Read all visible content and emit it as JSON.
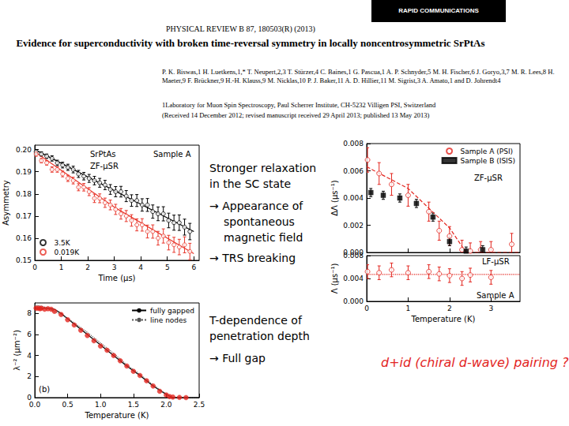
{
  "header": {
    "banner": "RAPID COMMUNICATIONS",
    "journal": "PHYSICAL REVIEW B 87, 180503(R) (2013)",
    "title": "Evidence for superconductivity with broken time-reversal symmetry in locally noncentrosymmetric SrPtAs",
    "authors": "P. K. Biswas,1 H. Luetkens,1,* T. Neupert,2,3 T. Stürzer,4 C. Baines,1 G. Pascua,1 A. P. Schnyder,5 M. H. Fischer,6 J. Goryo,3,7 M. R. Lees,8 H. Maeter,9 F. Brückner,9 H.-H. Klauss,9 M. Nicklas,10 P. J. Baker,11 A. D. Hillier,11 M. Sigrist,3 A. Amato,1 and D. Johrendt4",
    "affiliation": "1Laboratory for Muon Spin Spectroscopy, Paul Scherrer Institute, CH-5232 Villigen PSI, Switzerland",
    "received": "(Received 14 December 2012; revised manuscript received 29 April 2013; published 13 May 2013)"
  },
  "notes": [
    {
      "text": [
        "Stronger relaxation",
        "in the SC state"
      ],
      "bullets": [
        [
          "→ Appearance of",
          "spontaneous",
          "magnetic field"
        ],
        [
          "→ TRS breaking"
        ]
      ]
    },
    {
      "text": [
        "T-dependence of",
        "penetration depth"
      ],
      "bullets": [
        [
          "→ Full gap"
        ]
      ]
    }
  ],
  "conclusion": "d+id (chiral d-wave) pairing ?",
  "chart_data": [
    {
      "type": "scatter",
      "x_label": "Time (µs)",
      "y_label": "Asymmetry",
      "xlim": [
        0,
        6.2
      ],
      "ylim": [
        0.15,
        0.202
      ],
      "xticks": [
        0,
        1,
        2,
        3,
        4,
        5,
        6
      ],
      "yticks": [
        0.15,
        0.16,
        0.17,
        0.18,
        0.19,
        {
          "value": 0.2,
          "label": "0.20"
        }
      ],
      "grid": false,
      "legend": "lower left",
      "annotations": [
        "SrPtAs",
        "Sample A",
        "ZF-µSR"
      ],
      "series": [
        {
          "name": "3.5K",
          "type": "scatter",
          "marker": "circle-open",
          "color": "#000000",
          "x": [
            0.05,
            0.25,
            0.45,
            0.65,
            0.85,
            1.05,
            1.25,
            1.45,
            1.65,
            1.85,
            2.05,
            2.25,
            2.45,
            2.65,
            2.85,
            3.05,
            3.25,
            3.45,
            3.65,
            3.85,
            4.05,
            4.25,
            4.45,
            4.65,
            4.85,
            5.05,
            5.25,
            5.45,
            5.65,
            5.85
          ],
          "values": [
            0.199,
            0.198,
            0.197,
            0.196,
            0.194,
            0.193,
            0.192,
            0.191,
            0.189,
            0.188,
            0.187,
            0.186,
            0.185,
            0.184,
            0.182,
            0.181,
            0.181,
            0.179,
            0.177,
            0.177,
            0.175,
            0.175,
            0.172,
            0.171,
            0.171,
            0.168,
            0.167,
            0.167,
            0.165,
            0.163
          ],
          "errors": [
            0.001,
            0.001,
            0.001,
            0.0012,
            0.0012,
            0.0013,
            0.0014,
            0.0015,
            0.0016,
            0.0017,
            0.0018,
            0.0019,
            0.002,
            0.0021,
            0.0022,
            0.0023,
            0.0024,
            0.0025,
            0.0026,
            0.0027,
            0.0028,
            0.0029,
            0.003,
            0.0031,
            0.0032,
            0.0033,
            0.0034,
            0.0035,
            0.0036,
            0.0037
          ]
        },
        {
          "name": "0.019K",
          "type": "scatter",
          "marker": "circle-open",
          "color": "#e8372c",
          "x": [
            0.05,
            0.25,
            0.45,
            0.65,
            0.85,
            1.05,
            1.25,
            1.45,
            1.65,
            1.85,
            2.05,
            2.25,
            2.45,
            2.65,
            2.85,
            3.05,
            3.25,
            3.45,
            3.65,
            3.85,
            4.05,
            4.25,
            4.45,
            4.65,
            4.85,
            5.05,
            5.25,
            5.45,
            5.65,
            5.85
          ],
          "values": [
            0.198,
            0.195,
            0.194,
            0.191,
            0.191,
            0.189,
            0.187,
            0.186,
            0.183,
            0.183,
            0.181,
            0.178,
            0.178,
            0.176,
            0.175,
            0.173,
            0.171,
            0.17,
            0.168,
            0.166,
            0.166,
            0.163,
            0.163,
            0.16,
            0.161,
            0.158,
            0.157,
            0.156,
            0.157,
            0.154
          ],
          "errors": [
            0.001,
            0.001,
            0.001,
            0.0012,
            0.0012,
            0.0013,
            0.0014,
            0.0015,
            0.0016,
            0.0017,
            0.0018,
            0.0019,
            0.002,
            0.0021,
            0.0022,
            0.0023,
            0.0024,
            0.0025,
            0.0026,
            0.0027,
            0.0028,
            0.0029,
            0.003,
            0.0031,
            0.0032,
            0.0033,
            0.0034,
            0.0035,
            0.0036,
            0.0037
          ]
        },
        {
          "type": "line",
          "line_style": "solid",
          "color": "#000000",
          "x": [
            0,
            6
          ],
          "values": [
            0.2,
            0.163
          ]
        },
        {
          "type": "line",
          "line_style": "solid",
          "color": "#e8372c",
          "x": [
            0,
            3,
            6
          ],
          "values": [
            0.199,
            0.174,
            0.153
          ]
        }
      ]
    },
    {
      "type": "scatter",
      "x_label": "Temperature (K)",
      "y_label": "λ⁻² (µm⁻²)",
      "xlim": [
        0,
        2.5
      ],
      "ylim": [
        0,
        9
      ],
      "xticks": [
        {
          "value": 0,
          "label": "0.0"
        },
        0.5,
        {
          "value": 1,
          "label": "1.0"
        },
        1.5,
        {
          "value": 2,
          "label": "2.0"
        },
        2.5
      ],
      "yticks": [
        0,
        2,
        4,
        6,
        8
      ],
      "grid": false,
      "legend": "upper right",
      "annotations": [
        "(b)"
      ],
      "series": [
        {
          "type": "scatter",
          "marker": "circle",
          "color": "#e3261f",
          "x": [
            0.02,
            0.05,
            0.08,
            0.1,
            0.15,
            0.2,
            0.25,
            0.3,
            0.4,
            0.5,
            0.6,
            0.7,
            0.8,
            0.9,
            1.0,
            1.1,
            1.2,
            1.3,
            1.4,
            1.5,
            1.6,
            1.7,
            1.8,
            1.9,
            2.0,
            2.05,
            2.1,
            2.2,
            2.3
          ],
          "values": [
            8.5,
            8.5,
            8.45,
            8.5,
            8.4,
            8.45,
            8.4,
            8.2,
            7.9,
            7.4,
            6.9,
            6.4,
            5.9,
            5.4,
            4.9,
            4.5,
            4.0,
            3.5,
            3.0,
            2.5,
            2.1,
            1.6,
            1.1,
            0.6,
            0.25,
            0.1,
            0.05,
            0.02,
            0
          ]
        },
        {
          "name": "fully gapped",
          "type": "line",
          "line_style": "solid",
          "color": "#000000",
          "x": [
            0,
            0.2,
            0.3,
            0.4,
            0.5,
            0.6,
            0.8,
            1.0,
            1.2,
            1.4,
            1.6,
            1.8,
            2.0,
            2.1,
            2.5
          ],
          "values": [
            8.5,
            8.5,
            8.4,
            8.0,
            7.5,
            7.0,
            6.0,
            5.0,
            4.0,
            3.0,
            2.1,
            1.1,
            0.3,
            0,
            0
          ]
        },
        {
          "name": "line nodes",
          "type": "line",
          "line_style": "dotted",
          "color": "#555555",
          "x": [
            0,
            0.1,
            0.2,
            0.3,
            0.4,
            0.6,
            0.8,
            1.0,
            1.2,
            1.4,
            1.6,
            1.8,
            2.0,
            2.1,
            2.5
          ],
          "values": [
            8.8,
            8.7,
            8.5,
            8.2,
            7.9,
            7.1,
            6.2,
            5.2,
            4.2,
            3.1,
            2.2,
            1.2,
            0.35,
            0,
            0
          ]
        }
      ]
    },
    {
      "type": "scatter",
      "y_label": "ΔΛ (µs⁻¹)",
      "xlim": [
        0,
        3.7
      ],
      "ylim": [
        0,
        0.008
      ],
      "xticks": [
        0,
        1,
        2,
        3
      ],
      "yticks": [
        {
          "value": 0,
          "label": "0.000"
        },
        {
          "value": 0.002,
          "label": "0.002"
        },
        {
          "value": 0.004,
          "label": "0.004"
        },
        {
          "value": 0.006,
          "label": "0.006"
        },
        {
          "value": 0.008,
          "label": "0.008"
        }
      ],
      "grid": false,
      "legend": "upper right",
      "tick_labels": "y",
      "annotations": [
        "ZF-µSR"
      ],
      "series": [
        {
          "name": "Sample A (PSI)",
          "type": "scatter",
          "marker": "circle-open",
          "color": "#e3261f",
          "x": [
            0.02,
            0.3,
            0.6,
            1.0,
            1.5,
            1.75,
            2.0,
            2.3,
            2.5,
            2.75,
            3.0,
            3.5
          ],
          "values": [
            0.0068,
            0.0058,
            0.005,
            0.0042,
            0.003,
            0.0016,
            0.0012,
            0.0002,
            0.0001,
            0.0002,
            0.0002,
            0.0006
          ],
          "errors": [
            0.0009,
            0.0008,
            0.0008,
            0.0008,
            0.0007,
            0.0007,
            0.0007,
            0.0007,
            0.0006,
            0.0006,
            0.0006,
            0.0008
          ]
        },
        {
          "name": "Sample B (ISIS)",
          "type": "scatter",
          "marker": "square",
          "color": "#000000",
          "x": [
            0.1,
            0.4,
            0.8,
            1.2,
            1.6,
            2.0,
            2.4,
            2.8
          ],
          "values": [
            0.0044,
            0.0042,
            0.004,
            0.0036,
            0.0026,
            0.0008,
            0.0001,
            0.0002
          ],
          "errors": [
            0.0003,
            0.0003,
            0.0003,
            0.0003,
            0.0003,
            0.0003,
            0.0003,
            0.0003
          ]
        },
        {
          "type": "line",
          "line_style": "dashed",
          "color": "#e3261f",
          "x": [
            0,
            1,
            2,
            2.4,
            3.7
          ],
          "values": [
            0.0063,
            0.0047,
            0.0018,
            0,
            0
          ]
        }
      ]
    },
    {
      "type": "scatter",
      "x_label": "Temperature (K)",
      "y_label": "Λ (µs⁻¹)",
      "xlim": [
        0,
        3.7
      ],
      "ylim": [
        0,
        0.008
      ],
      "xticks": [
        0,
        1,
        2,
        3
      ],
      "yticks": [
        {
          "value": 0,
          "label": "0.000"
        },
        {
          "value": 0.004,
          "label": "0.004"
        },
        {
          "value": 0.008,
          "label": "0.008"
        }
      ],
      "grid": false,
      "annotations": [
        "LF-µSR",
        "Sample A"
      ],
      "series": [
        {
          "type": "scatter",
          "marker": "circle-open",
          "color": "#e3261f",
          "x": [
            0.02,
            0.3,
            0.6,
            1.0,
            1.5,
            1.75,
            2.0,
            2.3,
            2.5,
            3.0
          ],
          "values": [
            0.0052,
            0.005,
            0.0055,
            0.005,
            0.0052,
            0.0048,
            0.0045,
            0.004,
            0.0046,
            0.0042
          ],
          "errors": [
            0.0012,
            0.0012,
            0.0012,
            0.0012,
            0.0012,
            0.0012,
            0.0012,
            0.0012,
            0.0012,
            0.0012
          ]
        },
        {
          "type": "line",
          "line_style": "dotted",
          "color": "#e3261f",
          "x": [
            0,
            3.7
          ],
          "values": [
            0.0047,
            0.0047
          ]
        }
      ]
    }
  ]
}
